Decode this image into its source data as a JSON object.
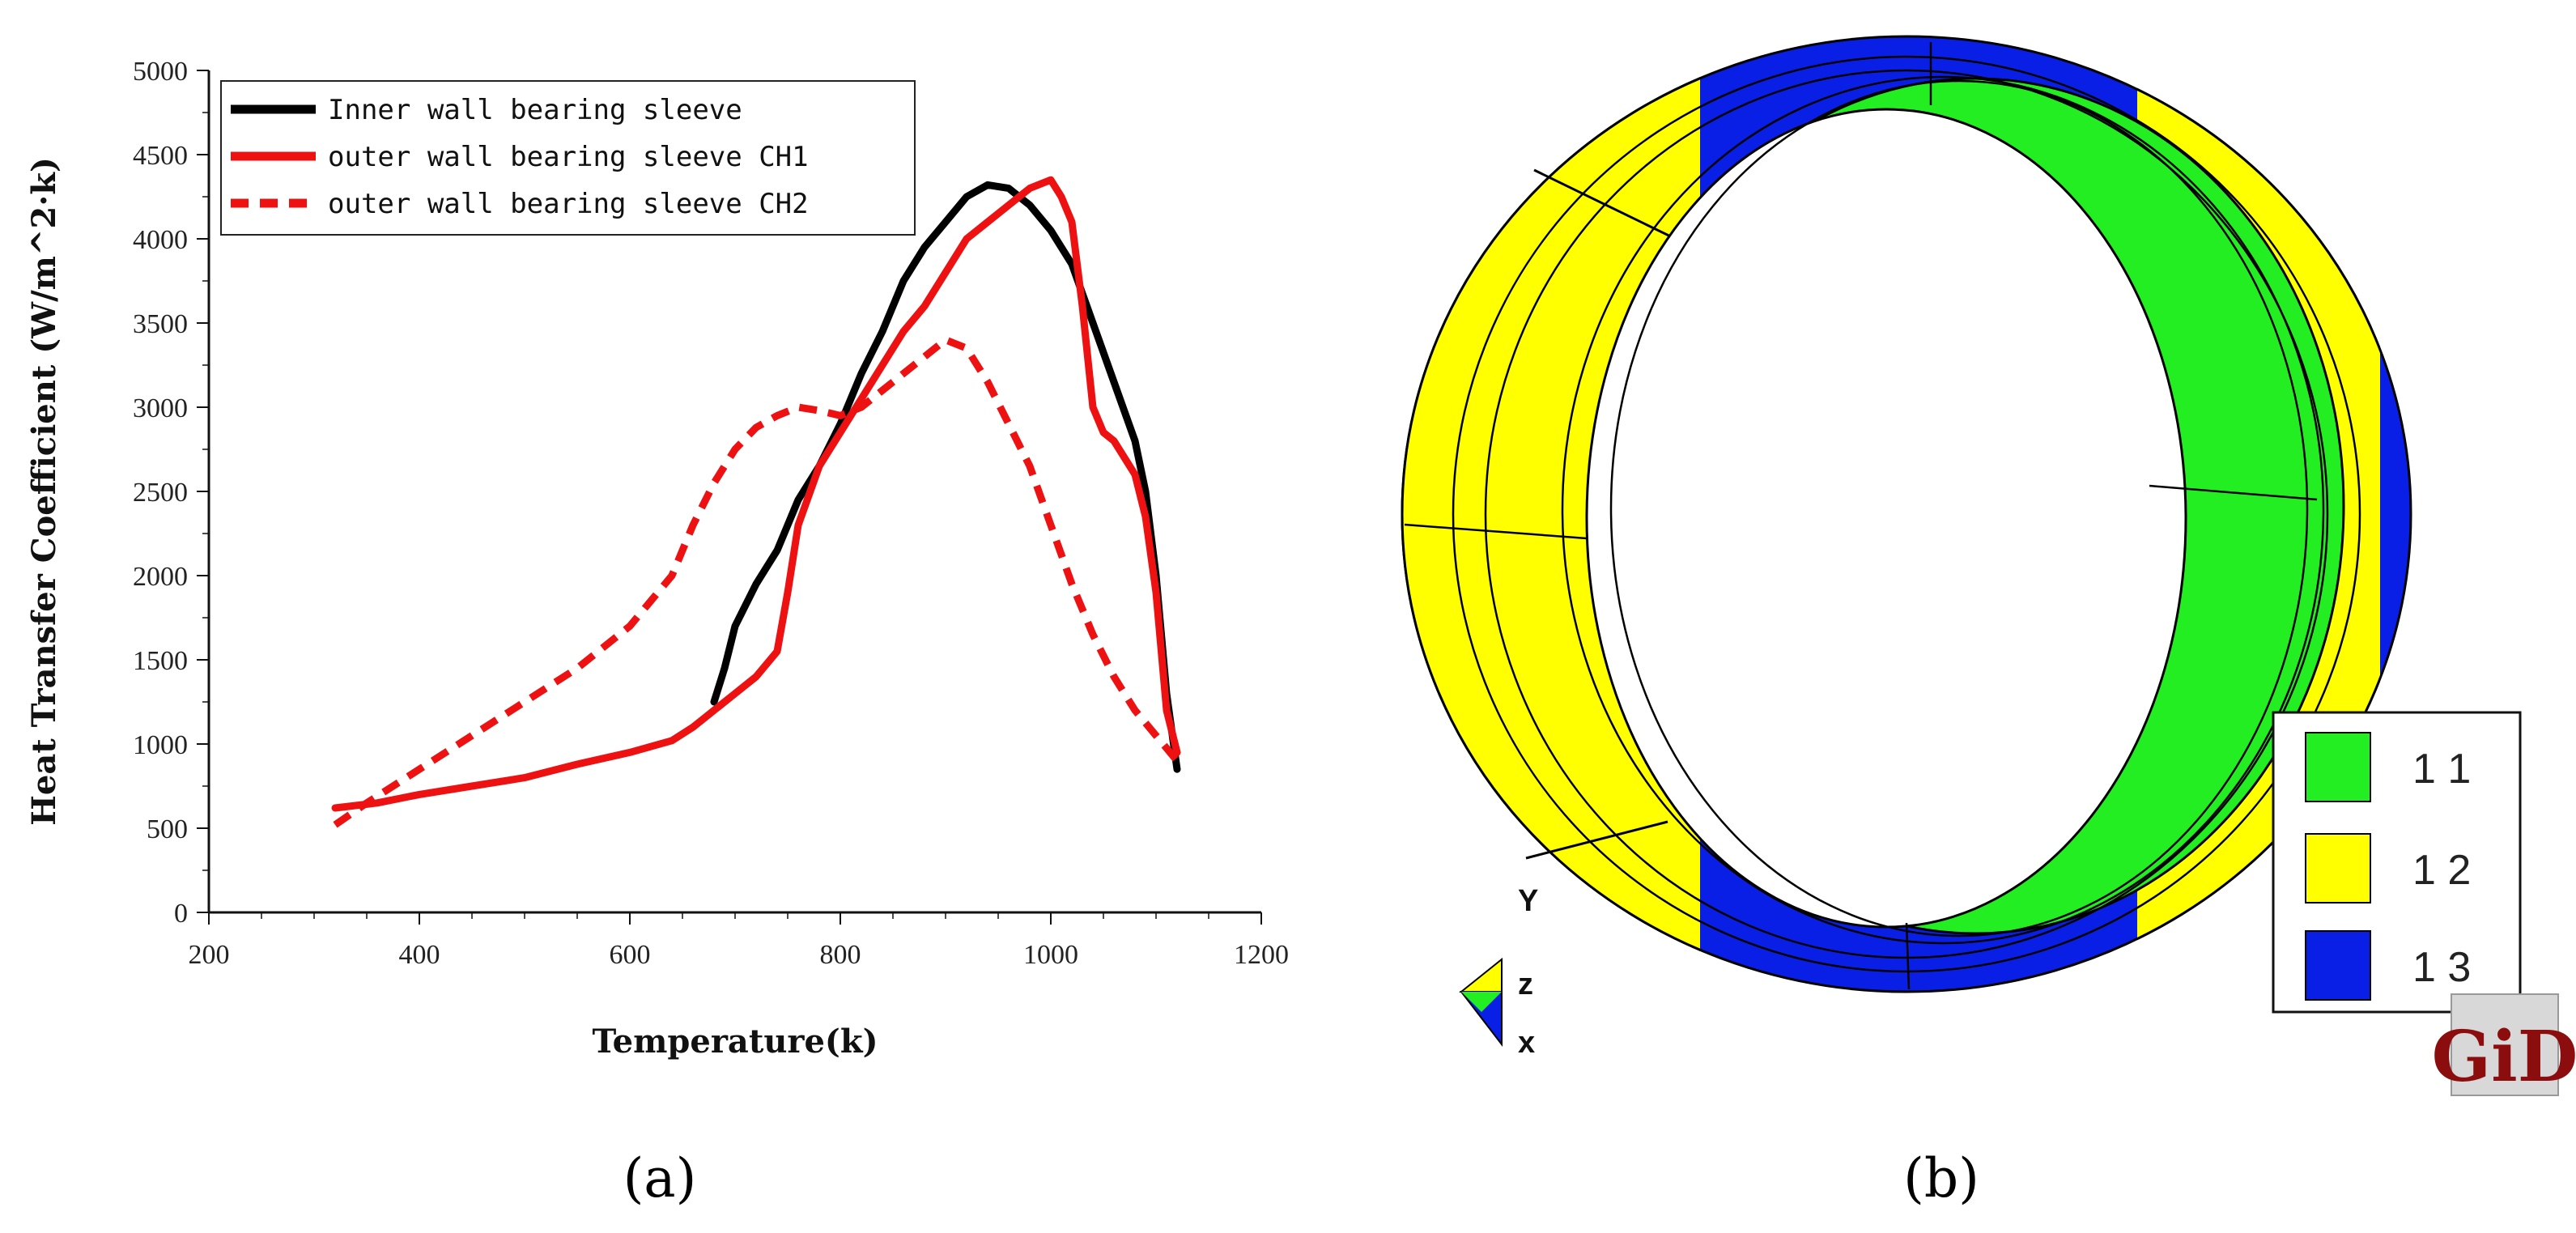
{
  "panels": {
    "a": "(a)",
    "b": "(b)"
  },
  "chart_data": {
    "type": "line",
    "xlabel": "Temperature(k)",
    "ylabel": "Heat Transfer Coefficient (W/m^2·k)",
    "xlim": [
      200,
      1200
    ],
    "ylim": [
      0,
      5000
    ],
    "xticks": [
      "200",
      "400",
      "600",
      "800",
      "1000",
      "1200"
    ],
    "yticks": [
      "0",
      "500",
      "1000",
      "1500",
      "2000",
      "2500",
      "3000",
      "3500",
      "4000",
      "4500",
      "5000"
    ],
    "legend_position": "top-left",
    "series": [
      {
        "name": "Inner wall bearing sleeve",
        "color": "#000000",
        "dash": "solid",
        "x": [
          680,
          690,
          700,
          720,
          740,
          760,
          780,
          800,
          820,
          840,
          860,
          880,
          900,
          920,
          940,
          960,
          980,
          1000,
          1020,
          1040,
          1060,
          1080,
          1090,
          1100,
          1110,
          1120
        ],
        "y": [
          1250,
          1450,
          1700,
          1950,
          2150,
          2450,
          2650,
          2900,
          3200,
          3450,
          3750,
          3950,
          4100,
          4250,
          4320,
          4300,
          4200,
          4050,
          3850,
          3500,
          3150,
          2800,
          2500,
          2000,
          1300,
          850
        ]
      },
      {
        "name": "outer wall bearing sleeve CH1",
        "color": "#ee1111",
        "dash": "solid",
        "x": [
          320,
          360,
          400,
          450,
          500,
          550,
          600,
          640,
          660,
          680,
          700,
          720,
          740,
          750,
          760,
          780,
          800,
          820,
          840,
          860,
          880,
          900,
          920,
          940,
          960,
          980,
          1000,
          1010,
          1020,
          1030,
          1040,
          1050,
          1060,
          1080,
          1090,
          1100,
          1110,
          1120
        ],
        "y": [
          620,
          650,
          700,
          750,
          800,
          880,
          950,
          1020,
          1100,
          1200,
          1300,
          1400,
          1550,
          1900,
          2300,
          2650,
          2850,
          3050,
          3250,
          3450,
          3600,
          3800,
          4000,
          4100,
          4200,
          4300,
          4350,
          4250,
          4100,
          3600,
          3000,
          2850,
          2800,
          2600,
          2350,
          1900,
          1200,
          950
        ]
      },
      {
        "name": "outer wall bearing sleeve CH2",
        "color": "#ee1111",
        "dash": "dashed",
        "x": [
          320,
          350,
          400,
          450,
          500,
          550,
          600,
          640,
          660,
          680,
          700,
          720,
          740,
          760,
          780,
          800,
          820,
          840,
          860,
          880,
          900,
          920,
          940,
          960,
          980,
          1000,
          1020,
          1040,
          1060,
          1080,
          1100,
          1120
        ],
        "y": [
          520,
          650,
          850,
          1050,
          1250,
          1450,
          1700,
          2000,
          2300,
          2550,
          2750,
          2880,
          2950,
          3000,
          2980,
          2950,
          3000,
          3100,
          3200,
          3300,
          3400,
          3350,
          3150,
          2900,
          2650,
          2300,
          1950,
          1650,
          1400,
          1200,
          1050,
          900
        ]
      }
    ]
  },
  "mesh": {
    "colors": {
      "green": "#22ee22",
      "yellow": "#ffff00",
      "blue": "#0a1fe6"
    },
    "legend": [
      "1 1",
      "1 2",
      "1 3"
    ],
    "axes": {
      "y": "Y",
      "z": "z",
      "x": "x"
    },
    "logo": "GiD"
  }
}
